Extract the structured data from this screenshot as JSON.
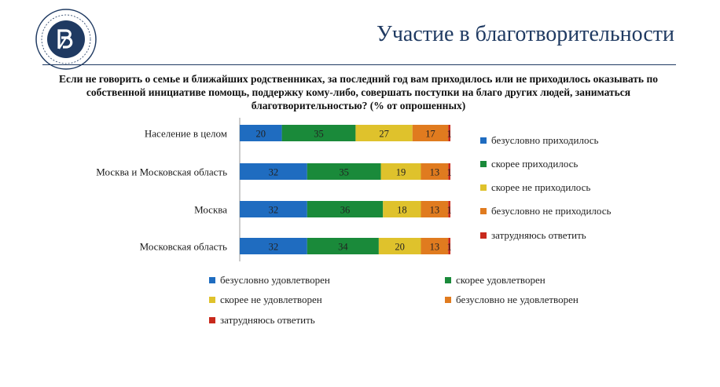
{
  "page": {
    "title": "Участие в благотворительности",
    "question": "Если не говорить о семье и ближайших родственниках, за последний год вам приходилось или не приходилось оказывать по собственной инициативе помощь, поддержку кому-либо, совершать поступки на благо других людей, заниматься благотворительностью? (% от опрошенных)"
  },
  "logo": {
    "icon": "hse-logo-icon",
    "color": "#1f3a62"
  },
  "colors": [
    "#1f6cc0",
    "#1a8a3a",
    "#dfc22c",
    "#e07b1f",
    "#c8291c"
  ],
  "chart_data": {
    "type": "bar",
    "orientation": "horizontal",
    "stacked": true,
    "categories": [
      "Население в целом",
      "Москва и Московская область",
      "Москва",
      "Московская область"
    ],
    "series": [
      {
        "name": "безусловно приходилось",
        "values": [
          20,
          32,
          32,
          32
        ]
      },
      {
        "name": "скорее приходилось",
        "values": [
          35,
          35,
          36,
          34
        ]
      },
      {
        "name": "скорее не приходилось",
        "values": [
          27,
          19,
          18,
          20
        ]
      },
      {
        "name": "безусловно не приходилось",
        "values": [
          17,
          13,
          13,
          13
        ]
      },
      {
        "name": "затрудняюсь ответить",
        "values": [
          1,
          1,
          1,
          1
        ]
      }
    ],
    "xlim": [
      0,
      100
    ],
    "grid": false,
    "legend": "right",
    "secondary_legend": [
      "безусловно удовлетворен",
      "скорее удовлетворен",
      "скорее не удовлетворен",
      "безусловно не удовлетворен",
      "затрудняюсь ответить"
    ]
  }
}
